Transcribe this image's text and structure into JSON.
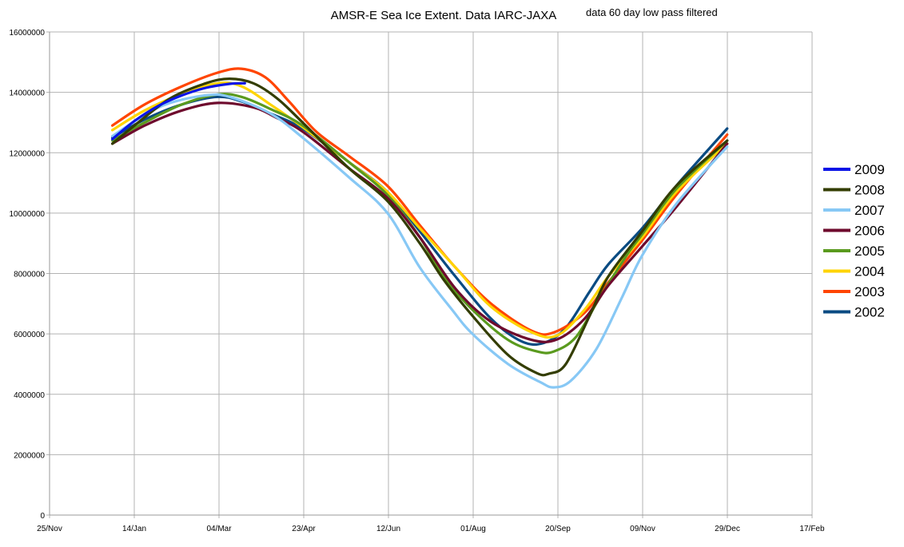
{
  "chart_data": {
    "type": "line",
    "title": "AMSR-E Sea Ice Extent. Data IARC-JAXA",
    "subtitle": "data 60 day low pass filtered",
    "xlabel": "",
    "ylabel": "",
    "x_ticks": [
      "25/Nov",
      "14/Jan",
      "04/Mar",
      "23/Apr",
      "12/Jun",
      "01/Aug",
      "20/Sep",
      "09/Nov",
      "29/Dec",
      "17/Feb"
    ],
    "xlim": [
      "25/Nov",
      "17/Feb"
    ],
    "y_ticks": [
      "0",
      "2000000",
      "4000000",
      "6000000",
      "8000000",
      "10000000",
      "12000000",
      "14000000",
      "16000000"
    ],
    "ylim": [
      0,
      16000000
    ],
    "grid": true,
    "legend_position": "right",
    "series": [
      {
        "name": "2009",
        "color": "#0a14e6",
        "points": [
          [
            "01/Jan",
            12450000
          ],
          [
            "14/Jan",
            13050000
          ],
          [
            "28/Jan",
            13550000
          ],
          [
            "11/Feb",
            13900000
          ],
          [
            "25/Feb",
            14150000
          ],
          [
            "11/Mar",
            14280000
          ],
          [
            "20/Mar",
            14300000
          ]
        ]
      },
      {
        "name": "2008",
        "color": "#333d00",
        "points": [
          [
            "01/Jan",
            12300000
          ],
          [
            "14/Jan",
            12900000
          ],
          [
            "04/Feb",
            13800000
          ],
          [
            "25/Feb",
            14300000
          ],
          [
            "11/Mar",
            14450000
          ],
          [
            "25/Mar",
            14300000
          ],
          [
            "08/Apr",
            13800000
          ],
          [
            "23/Apr",
            13000000
          ],
          [
            "20/May",
            11500000
          ],
          [
            "12/Jun",
            10400000
          ],
          [
            "01/Jul",
            9000000
          ],
          [
            "15/Jul",
            7800000
          ],
          [
            "01/Aug",
            6600000
          ],
          [
            "22/Aug",
            5300000
          ],
          [
            "08/Sep",
            4700000
          ],
          [
            "15/Sep",
            4680000
          ],
          [
            "25/Sep",
            5000000
          ],
          [
            "09/Oct",
            6600000
          ],
          [
            "20/Oct",
            7900000
          ],
          [
            "09/Nov",
            9400000
          ],
          [
            "29/Nov",
            10900000
          ],
          [
            "29/Dec",
            12400000
          ]
        ]
      },
      {
        "name": "2007",
        "color": "#87c8f5",
        "points": [
          [
            "01/Jan",
            12550000
          ],
          [
            "20/Jan",
            13250000
          ],
          [
            "04/Feb",
            13650000
          ],
          [
            "25/Feb",
            13900000
          ],
          [
            "11/Mar",
            13850000
          ],
          [
            "04/Apr",
            13300000
          ],
          [
            "23/Apr",
            12500000
          ],
          [
            "20/May",
            11200000
          ],
          [
            "12/Jun",
            10000000
          ],
          [
            "01/Jul",
            8200000
          ],
          [
            "20/Jul",
            6800000
          ],
          [
            "01/Aug",
            6000000
          ],
          [
            "22/Aug",
            5000000
          ],
          [
            "10/Sep",
            4400000
          ],
          [
            "18/Sep",
            4230000
          ],
          [
            "28/Sep",
            4450000
          ],
          [
            "13/Oct",
            5500000
          ],
          [
            "28/Oct",
            7200000
          ],
          [
            "09/Nov",
            8600000
          ],
          [
            "29/Nov",
            10300000
          ],
          [
            "29/Dec",
            12200000
          ]
        ]
      },
      {
        "name": "2006",
        "color": "#6e0a2d",
        "points": [
          [
            "01/Jan",
            12300000
          ],
          [
            "20/Jan",
            12900000
          ],
          [
            "11/Feb",
            13400000
          ],
          [
            "04/Mar",
            13650000
          ],
          [
            "25/Mar",
            13500000
          ],
          [
            "08/Apr",
            13150000
          ],
          [
            "23/Apr",
            12700000
          ],
          [
            "20/May",
            11500000
          ],
          [
            "12/Jun",
            10500000
          ],
          [
            "01/Jul",
            9200000
          ],
          [
            "22/Jul",
            7500000
          ],
          [
            "12/Aug",
            6400000
          ],
          [
            "05/Sep",
            5800000
          ],
          [
            "20/Sep",
            5820000
          ],
          [
            "06/Oct",
            6500000
          ],
          [
            "20/Oct",
            7600000
          ],
          [
            "09/Nov",
            8900000
          ],
          [
            "29/Nov",
            10200000
          ],
          [
            "29/Dec",
            12300000
          ]
        ]
      },
      {
        "name": "2005",
        "color": "#5a9a1e",
        "points": [
          [
            "01/Jan",
            12400000
          ],
          [
            "20/Jan",
            13000000
          ],
          [
            "11/Feb",
            13600000
          ],
          [
            "04/Mar",
            13930000
          ],
          [
            "18/Mar",
            13850000
          ],
          [
            "04/Apr",
            13450000
          ],
          [
            "23/Apr",
            12900000
          ],
          [
            "20/May",
            11700000
          ],
          [
            "12/Jun",
            10600000
          ],
          [
            "01/Jul",
            9200000
          ],
          [
            "15/Jul",
            7900000
          ],
          [
            "01/Aug",
            6800000
          ],
          [
            "22/Aug",
            5800000
          ],
          [
            "08/Sep",
            5420000
          ],
          [
            "18/Sep",
            5420000
          ],
          [
            "01/Oct",
            5900000
          ],
          [
            "15/Oct",
            7200000
          ],
          [
            "01/Nov",
            8700000
          ],
          [
            "09/Nov",
            9300000
          ],
          [
            "29/Nov",
            10800000
          ],
          [
            "29/Dec",
            12400000
          ]
        ]
      },
      {
        "name": "2004",
        "color": "#ffd400",
        "points": [
          [
            "01/Jan",
            12750000
          ],
          [
            "20/Jan",
            13400000
          ],
          [
            "11/Feb",
            13950000
          ],
          [
            "04/Mar",
            14300000
          ],
          [
            "18/Mar",
            14200000
          ],
          [
            "04/Apr",
            13600000
          ],
          [
            "23/Apr",
            12850000
          ],
          [
            "20/May",
            11700000
          ],
          [
            "12/Jun",
            10700000
          ],
          [
            "01/Jul",
            9500000
          ],
          [
            "22/Jul",
            8200000
          ],
          [
            "12/Aug",
            6900000
          ],
          [
            "05/Sep",
            6050000
          ],
          [
            "20/Sep",
            5950000
          ],
          [
            "06/Oct",
            6800000
          ],
          [
            "20/Oct",
            7900000
          ],
          [
            "09/Nov",
            9200000
          ],
          [
            "29/Nov",
            10700000
          ],
          [
            "29/Dec",
            12300000
          ]
        ]
      },
      {
        "name": "2003",
        "color": "#ff4500",
        "points": [
          [
            "01/Jan",
            12900000
          ],
          [
            "20/Jan",
            13600000
          ],
          [
            "11/Feb",
            14200000
          ],
          [
            "04/Mar",
            14650000
          ],
          [
            "18/Mar",
            14780000
          ],
          [
            "01/Apr",
            14500000
          ],
          [
            "15/Apr",
            13700000
          ],
          [
            "01/May",
            12700000
          ],
          [
            "20/May",
            11900000
          ],
          [
            "12/Jun",
            10900000
          ],
          [
            "01/Jul",
            9600000
          ],
          [
            "22/Jul",
            8200000
          ],
          [
            "12/Aug",
            7000000
          ],
          [
            "05/Sep",
            6100000
          ],
          [
            "18/Sep",
            6050000
          ],
          [
            "06/Oct",
            6700000
          ],
          [
            "20/Oct",
            7700000
          ],
          [
            "09/Nov",
            9100000
          ],
          [
            "29/Nov",
            10600000
          ],
          [
            "29/Dec",
            12600000
          ]
        ]
      },
      {
        "name": "2002",
        "color": "#0a4b82",
        "points": [
          [
            "01/Jan",
            12500000
          ],
          [
            "20/Jan",
            13100000
          ],
          [
            "11/Feb",
            13600000
          ],
          [
            "04/Mar",
            13850000
          ],
          [
            "18/Mar",
            13700000
          ],
          [
            "04/Apr",
            13300000
          ],
          [
            "23/Apr",
            12800000
          ],
          [
            "20/May",
            11700000
          ],
          [
            "12/Jun",
            10700000
          ],
          [
            "01/Jul",
            9400000
          ],
          [
            "22/Jul",
            7900000
          ],
          [
            "12/Aug",
            6500000
          ],
          [
            "30/Aug",
            5750000
          ],
          [
            "12/Sep",
            5700000
          ],
          [
            "25/Sep",
            6200000
          ],
          [
            "09/Oct",
            7400000
          ],
          [
            "20/Oct",
            8300000
          ],
          [
            "09/Nov",
            9500000
          ],
          [
            "29/Nov",
            10900000
          ],
          [
            "29/Dec",
            12800000
          ]
        ]
      }
    ]
  }
}
